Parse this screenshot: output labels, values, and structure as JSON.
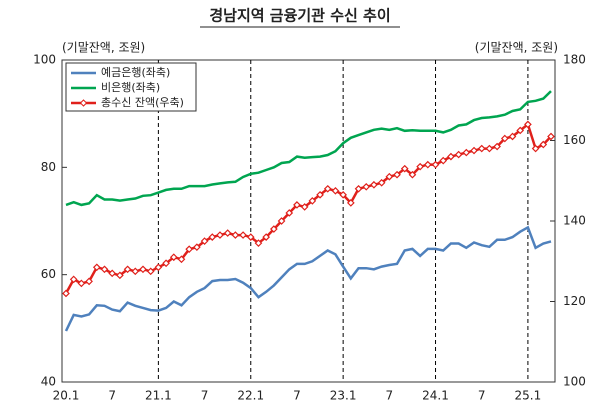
{
  "chart_data": {
    "type": "line",
    "title": "경남지역 금융기관 수신 추이",
    "y_label": "(기말잔액, 조원)",
    "y2_label": "(기말잔액, 조원)",
    "categories": [
      "20.1",
      null,
      null,
      null,
      null,
      null,
      "7",
      null,
      null,
      null,
      null,
      null,
      "21.1",
      null,
      null,
      null,
      null,
      null,
      "7",
      null,
      null,
      null,
      null,
      null,
      "22.1",
      null,
      null,
      null,
      null,
      null,
      "7",
      null,
      null,
      null,
      null,
      null,
      "23.1",
      null,
      null,
      null,
      null,
      null,
      "7",
      null,
      null,
      null,
      null,
      null,
      "24.1",
      null,
      null,
      null,
      null,
      null,
      "7",
      null,
      null,
      null,
      null,
      null,
      "25.1",
      null,
      null,
      null
    ],
    "series": [
      {
        "name": "예금은행(좌축)",
        "color": "#4f81bd",
        "axis": "y",
        "values": [
          49.5,
          52.5,
          52.2,
          52.6,
          54.3,
          54.2,
          53.5,
          53.2,
          54.8,
          54.2,
          53.8,
          53.4,
          53.3,
          53.8,
          55.0,
          54.3,
          55.8,
          56.8,
          57.5,
          58.8,
          59.0,
          59.0,
          59.2,
          58.5,
          57.5,
          55.8,
          56.8,
          58.0,
          59.5,
          61.0,
          62.0,
          62.0,
          62.5,
          63.5,
          64.5,
          63.8,
          61.5,
          59.3,
          61.2,
          61.2,
          61.0,
          61.5,
          61.8,
          62.0,
          64.5,
          64.8,
          63.5,
          64.8,
          64.8,
          64.5,
          65.8,
          65.8,
          65.0,
          66.0,
          65.5,
          65.2,
          66.5,
          66.5,
          67.0,
          68.0,
          68.8,
          65.0,
          65.8,
          66.2
        ]
      },
      {
        "name": "비은행(좌축)",
        "color": "#00a550",
        "axis": "y",
        "values": [
          73.0,
          73.5,
          73.0,
          73.3,
          74.8,
          74.0,
          74.0,
          73.8,
          74.0,
          74.2,
          74.7,
          74.8,
          75.3,
          75.8,
          76.0,
          76.0,
          76.5,
          76.5,
          76.5,
          76.8,
          77.0,
          77.2,
          77.3,
          78.2,
          78.8,
          79.0,
          79.5,
          80.0,
          80.8,
          81.0,
          82.0,
          81.8,
          81.9,
          82.0,
          82.3,
          83.0,
          84.5,
          85.5,
          86.0,
          86.5,
          87.0,
          87.2,
          87.0,
          87.3,
          86.8,
          86.9,
          86.8,
          86.8,
          86.8,
          86.5,
          87.0,
          87.8,
          88.0,
          88.8,
          89.2,
          89.3,
          89.5,
          89.8,
          90.5,
          90.8,
          92.2,
          92.4,
          92.8,
          94.2
        ]
      },
      {
        "name": "총수신 잔액(우축)",
        "color": "#e0201b",
        "axis": "y2",
        "marker": "diamond",
        "values": [
          122,
          125.5,
          124.5,
          125,
          128.5,
          128,
          127,
          126.5,
          128,
          127.5,
          128,
          127.5,
          128.5,
          129.5,
          131,
          130.5,
          133,
          133.5,
          135,
          136,
          136.5,
          137,
          136.5,
          136.5,
          136,
          134.5,
          136,
          138,
          140,
          142,
          144,
          143.5,
          145,
          146.5,
          148,
          147.5,
          146.5,
          144.5,
          148,
          148.5,
          149,
          149.5,
          151,
          151.5,
          153,
          151.5,
          153.5,
          154,
          154,
          155,
          156,
          156.5,
          157,
          157.5,
          158,
          158,
          158.5,
          160.5,
          161,
          162.5,
          164,
          158,
          159,
          161
        ]
      }
    ],
    "ylim": [
      40,
      100
    ],
    "yticks": [
      40,
      60,
      80,
      100
    ],
    "y2lim": [
      100,
      180
    ],
    "y2ticks": [
      100,
      120,
      140,
      160,
      180
    ],
    "grid": false,
    "legend": "upper left"
  }
}
